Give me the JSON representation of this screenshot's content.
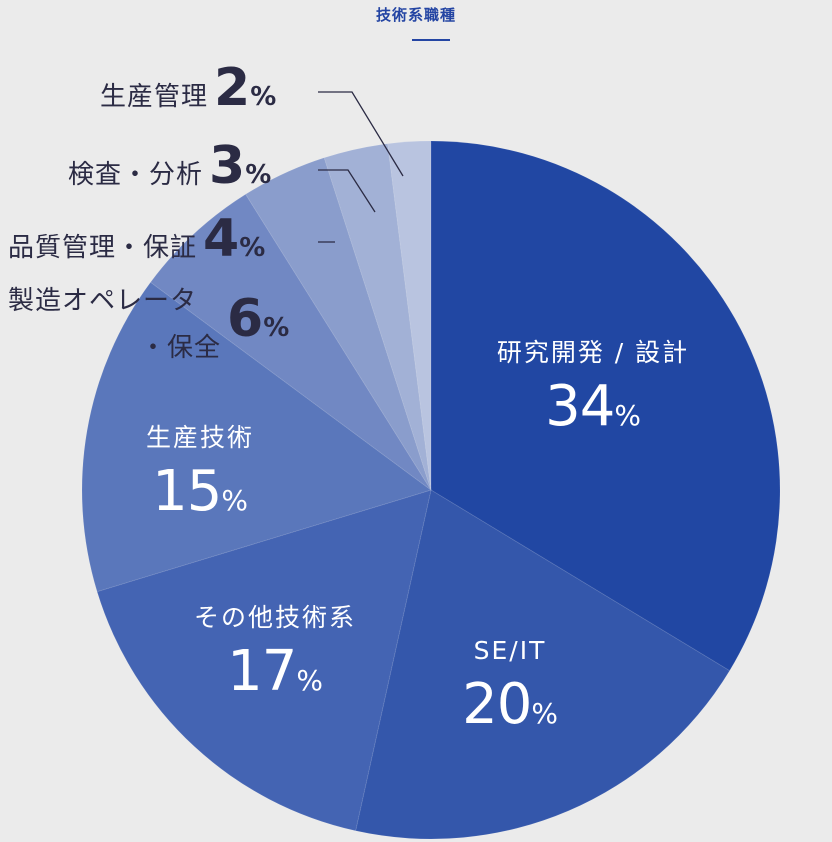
{
  "title": "技術系職種",
  "chart_data": {
    "type": "pie",
    "title": "技術系職種",
    "unit": "%",
    "slices": [
      {
        "label": "研究開発 / 設計",
        "value": 34,
        "color": "#2147a3"
      },
      {
        "label": "SE/IT",
        "value": 20,
        "color": "#3457ab"
      },
      {
        "label": "その他技術系",
        "value": 17,
        "color": "#4464b3"
      },
      {
        "label": "生産技術",
        "value": 15,
        "color": "#5a77bb"
      },
      {
        "label": "製造オペレーター・保全",
        "value": 6,
        "color": "#7188c3"
      },
      {
        "label": "品質管理・保証",
        "value": 4,
        "color": "#8a9dcc"
      },
      {
        "label": "検査・分析",
        "value": 3,
        "color": "#a2b1d6"
      },
      {
        "label": "生産管理",
        "value": 2,
        "color": "#b9c4e0"
      }
    ]
  },
  "labels": {
    "s0_name": "研究開発 / 設計",
    "s1_name": "SE/IT",
    "s2_name": "その他技術系",
    "s3_name": "生産技術",
    "s4_name_line1": "製造オペレータ",
    "s4_name_line2": "・保全",
    "s5_name": "品質管理・保証",
    "s6_name": "検査・分析",
    "s7_name": "生産管理",
    "pct_sign": "%"
  }
}
